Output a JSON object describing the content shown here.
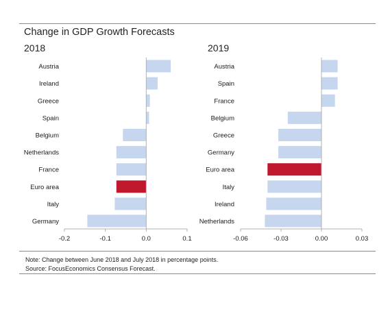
{
  "header": {
    "title": "Change in GDP Growth Forecasts"
  },
  "footer": {
    "note": "Note: Change between June 2018 and July 2018 in percentage points.",
    "source": "Source: FocusEconomics Consensus Forecast."
  },
  "colors": {
    "bar": "#c6d6ee",
    "highlight": "#c0182e",
    "axis": "#b0b0b0",
    "text": "#1a1a1a"
  },
  "chart_data": [
    {
      "type": "bar",
      "orientation": "horizontal",
      "title": "2018",
      "categories": [
        "Austria",
        "Ireland",
        "Greece",
        "Spain",
        "Belgium",
        "Netherlands",
        "France",
        "Euro area",
        "Italy",
        "Germany"
      ],
      "values": [
        0.06,
        0.028,
        0.009,
        0.007,
        -0.057,
        -0.073,
        -0.073,
        -0.073,
        -0.077,
        -0.144
      ],
      "highlight": "Euro area",
      "xlim": [
        -0.2,
        0.1
      ],
      "xticks": [
        "-0.2",
        "-0.1",
        "0.0",
        "0.1"
      ],
      "xtick_values": [
        -0.2,
        -0.1,
        0.0,
        0.1
      ],
      "grid": false
    },
    {
      "type": "bar",
      "orientation": "horizontal",
      "title": "2019",
      "categories": [
        "Austria",
        "Spain",
        "France",
        "Belgium",
        "Greece",
        "Germany",
        "Euro area",
        "Italy",
        "Ireland",
        "Netherlands"
      ],
      "values": [
        0.012,
        0.012,
        0.01,
        -0.025,
        -0.032,
        -0.032,
        -0.04,
        -0.04,
        -0.041,
        -0.042
      ],
      "highlight": "Euro area",
      "xlim": [
        -0.06,
        0.03
      ],
      "xticks": [
        "-0.06",
        "-0.03",
        "0.00",
        "0.03"
      ],
      "xtick_values": [
        -0.06,
        -0.03,
        0.0,
        0.03
      ],
      "grid": false
    }
  ]
}
